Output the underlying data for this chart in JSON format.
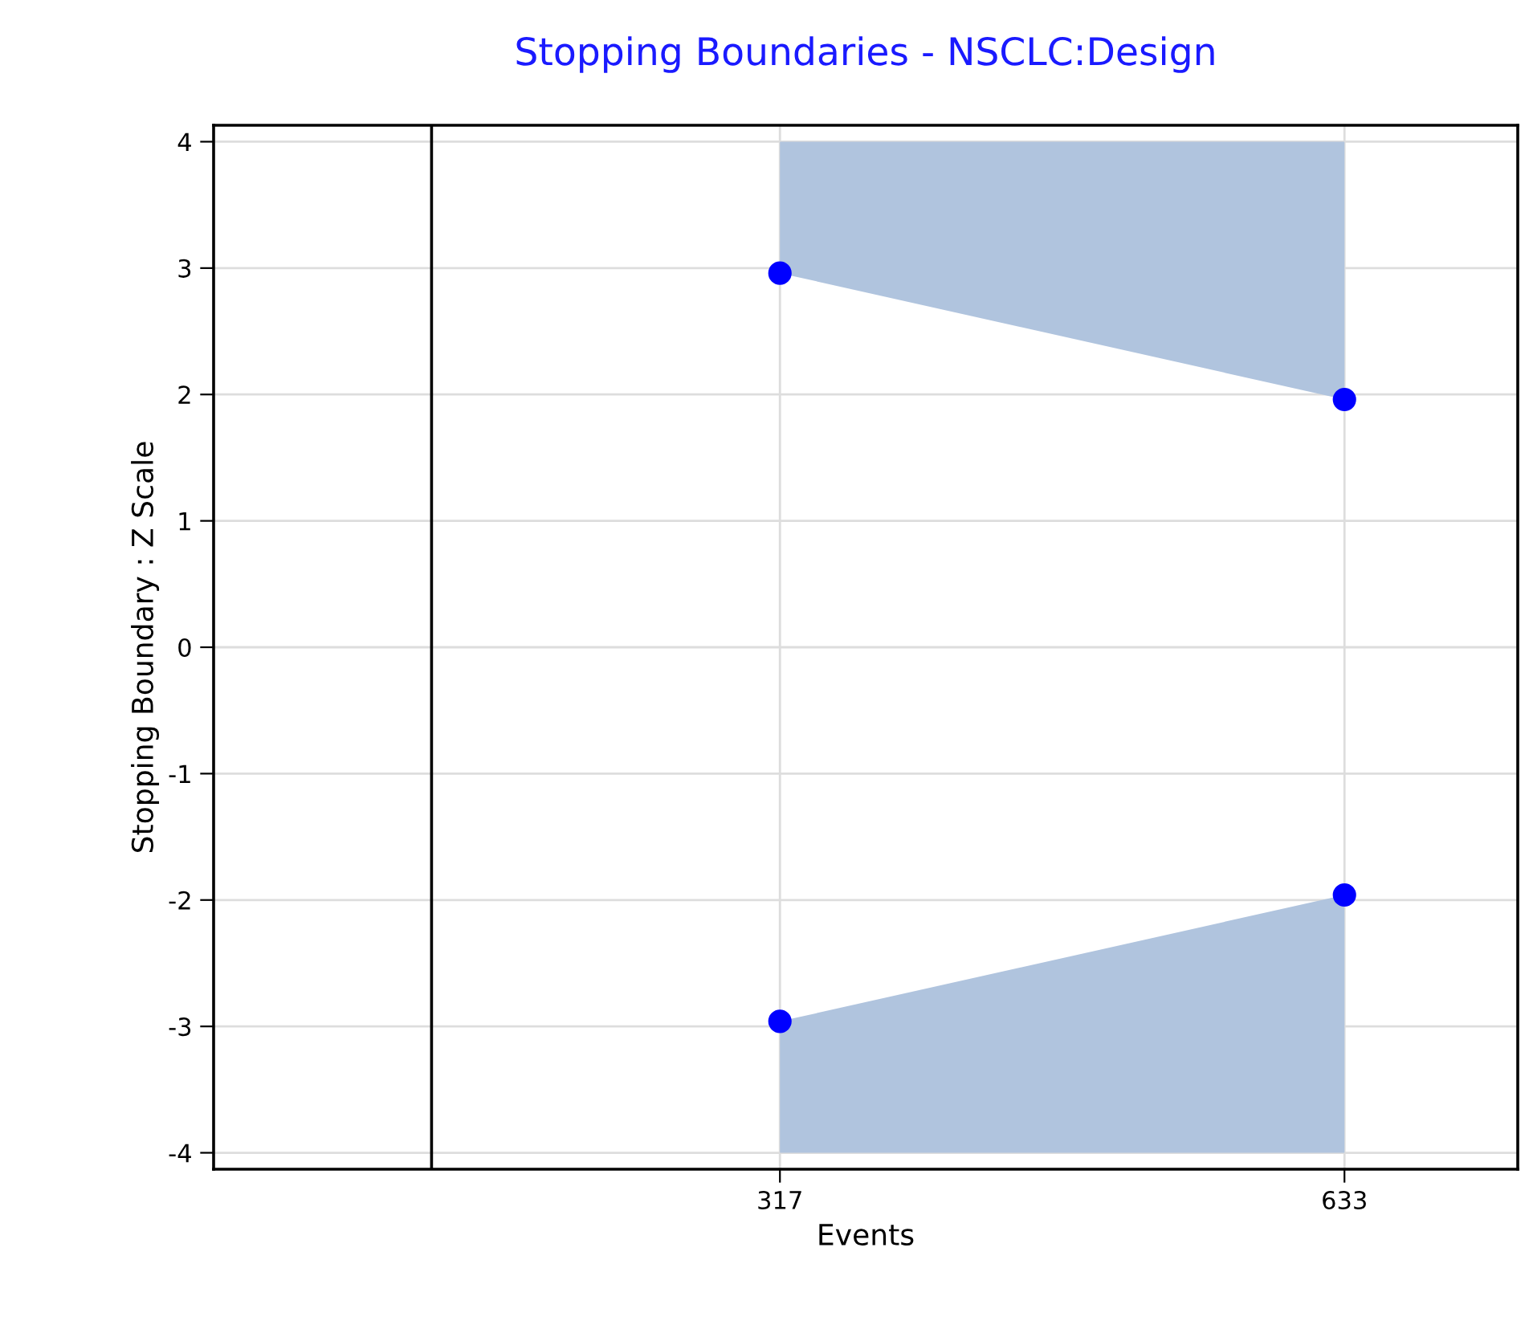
{
  "chart_data": {
    "type": "scatter",
    "title": "Stopping Boundaries - NSCLC:Design",
    "xlabel": "Events",
    "ylabel": "Stopping Boundary : Z Scale",
    "x": [
      317,
      633
    ],
    "series": [
      {
        "color": "#0000ff",
        "values": [
          2.96,
          1.96
        ],
        "lower": [
          2.96,
          1.96
        ],
        "upper": [
          4,
          4
        ]
      },
      {
        "color": "#0000ff",
        "values": [
          -2.96,
          -1.96
        ],
        "lower": [
          -4,
          -4
        ],
        "upper": [
          -2.96,
          -1.96
        ]
      }
    ],
    "xlim": [
      0,
      730
    ],
    "xticks": [
      317,
      633
    ],
    "ylim": [
      -4.13,
      4.13
    ],
    "yticks": [
      -4,
      -3,
      -2,
      -1,
      0,
      1,
      2,
      3,
      4
    ],
    "ref_lines": [
      {
        "axis": "x",
        "value": 122,
        "color": "#000000"
      }
    ],
    "grid": true,
    "marker": "circle"
  }
}
